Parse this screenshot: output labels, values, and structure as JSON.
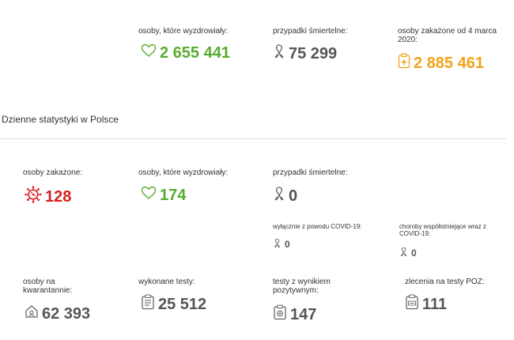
{
  "top": {
    "recovered": {
      "label": "osoby, które wyzdrowiały:",
      "value": "2 655 441",
      "icon": "heart-icon"
    },
    "deaths": {
      "label": "przypadki śmiertelne:",
      "value": "75 299",
      "icon": "ribbon-icon"
    },
    "infected": {
      "label_line1": "osoby zakażone od 4 marca",
      "label_line2": "2020:",
      "value": "2 885 461",
      "icon": "medical-clipboard-icon"
    }
  },
  "section_title": "Dzienne statystyki w Polsce",
  "daily": {
    "infected": {
      "label": "osoby zakażone:",
      "value": "128",
      "icon": "virus-icon"
    },
    "recovered": {
      "label": "osoby, które wyzdrowiały:",
      "value": "174",
      "icon": "heart-icon"
    },
    "deaths": {
      "label": "przypadki śmiertelne:",
      "value": "0",
      "icon": "ribbon-icon"
    },
    "deaths_covid_only": {
      "label": "wyłącznie z powodu COVID-19:",
      "value": "0",
      "icon": "ribbon-icon"
    },
    "deaths_comorbidities": {
      "label_line1": "choroby współistniejące wraz z",
      "label_line2": "COVID-19:",
      "value": "0",
      "icon": "ribbon-icon"
    },
    "quarantine": {
      "label_line1": "osoby na",
      "label_line2": "kwarantannie:",
      "value": "62 393",
      "icon": "house-icon"
    },
    "tests": {
      "label": "wykonane testy:",
      "value": "25 512",
      "icon": "test-kit-icon"
    },
    "positive_tests": {
      "label_line1": "testy z wynikiem",
      "label_line2": "pozytywnym:",
      "value": "147",
      "icon": "positive-test-icon"
    },
    "poz_orders": {
      "label": "zlecenia na testy POZ:",
      "value": "111",
      "icon": "poz-order-icon"
    }
  },
  "colors": {
    "green": "#5aab2f",
    "orange": "#f3a21a",
    "red": "#d81e1e",
    "grey": "#555555"
  }
}
